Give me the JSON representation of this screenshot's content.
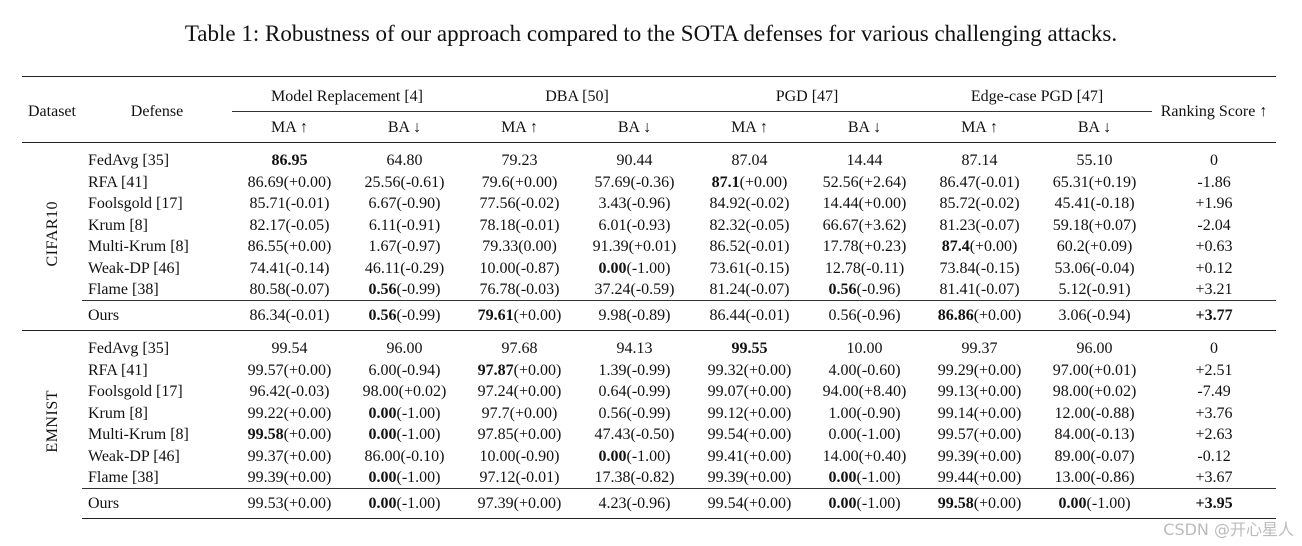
{
  "caption": "Table 1: Robustness of our approach compared to the SOTA defenses for various challenging attacks.",
  "headers": {
    "dataset": "Dataset",
    "defense": "Defense",
    "groups": [
      "Model Replacement [4]",
      "DBA [50]",
      "PGD [47]",
      "Edge-case PGD [47]"
    ],
    "ranking": "Ranking Score ↑",
    "sub": [
      "MA ↑",
      "BA ↓",
      "MA ↑",
      "BA ↓",
      "MA ↑",
      "BA ↓",
      "MA ↑",
      "BA ↓"
    ]
  },
  "sections": [
    {
      "dataset": "CIFAR10",
      "rows": [
        {
          "defense": "FedAvg [35]",
          "cells": [
            [
              "86.95",
              ""
            ],
            [
              "64.80",
              ""
            ],
            [
              "79.23",
              ""
            ],
            [
              "90.44",
              ""
            ],
            [
              "87.04",
              ""
            ],
            [
              "14.44",
              ""
            ],
            [
              "87.14",
              ""
            ],
            [
              "55.10",
              ""
            ]
          ],
          "bold": [
            0
          ],
          "rank": "0"
        },
        {
          "defense": "RFA [41]",
          "cells": [
            [
              "86.69",
              "(+0.00)"
            ],
            [
              "25.56",
              "(-0.61)"
            ],
            [
              "79.6",
              "(+0.00)"
            ],
            [
              "57.69",
              "(-0.36)"
            ],
            [
              "87.1",
              "(+0.00)"
            ],
            [
              "52.56",
              "(+2.64)"
            ],
            [
              "86.47",
              "(-0.01)"
            ],
            [
              "65.31",
              "(+0.19)"
            ]
          ],
          "bold": [
            4
          ],
          "rank": "-1.86"
        },
        {
          "defense": "Foolsgold [17]",
          "cells": [
            [
              "85.71",
              "(-0.01)"
            ],
            [
              "6.67",
              "(-0.90)"
            ],
            [
              "77.56",
              "(-0.02)"
            ],
            [
              "3.43",
              "(-0.96)"
            ],
            [
              "84.92",
              "(-0.02)"
            ],
            [
              "14.44",
              "(+0.00)"
            ],
            [
              "85.72",
              "(-0.02)"
            ],
            [
              "45.41",
              "(-0.18)"
            ]
          ],
          "bold": [],
          "rank": "+1.96"
        },
        {
          "defense": "Krum [8]",
          "cells": [
            [
              "82.17",
              "(-0.05)"
            ],
            [
              "6.11",
              "(-0.91)"
            ],
            [
              "78.18",
              "(-0.01)"
            ],
            [
              "6.01",
              "(-0.93)"
            ],
            [
              "82.32",
              "(-0.05)"
            ],
            [
              "66.67",
              "(+3.62)"
            ],
            [
              "81.23",
              "(-0.07)"
            ],
            [
              "59.18",
              "(+0.07)"
            ]
          ],
          "bold": [],
          "rank": "-2.04"
        },
        {
          "defense": "Multi-Krum [8]",
          "cells": [
            [
              "86.55",
              "(+0.00)"
            ],
            [
              "1.67",
              "(-0.97)"
            ],
            [
              "79.33",
              "(0.00)"
            ],
            [
              "91.39",
              "(+0.01)"
            ],
            [
              "86.52",
              "(-0.01)"
            ],
            [
              "17.78",
              "(+0.23)"
            ],
            [
              "87.4",
              "(+0.00)"
            ],
            [
              "60.2",
              "(+0.09)"
            ]
          ],
          "bold": [
            6
          ],
          "rank": "+0.63"
        },
        {
          "defense": "Weak-DP [46]",
          "cells": [
            [
              "74.41",
              "(-0.14)"
            ],
            [
              "46.11",
              "(-0.29)"
            ],
            [
              "10.00",
              "(-0.87)"
            ],
            [
              "0.00",
              "(-1.00)"
            ],
            [
              "73.61",
              "(-0.15)"
            ],
            [
              "12.78",
              "(-0.11)"
            ],
            [
              "73.84",
              "(-0.15)"
            ],
            [
              "53.06",
              "(-0.04)"
            ]
          ],
          "bold": [
            3
          ],
          "rank": "+0.12"
        },
        {
          "defense": "Flame [38]",
          "cells": [
            [
              "80.58",
              "(-0.07)"
            ],
            [
              "0.56",
              "(-0.99)"
            ],
            [
              "76.78",
              "(-0.03)"
            ],
            [
              "37.24",
              "(-0.59)"
            ],
            [
              "81.24",
              "(-0.07)"
            ],
            [
              "0.56",
              "(-0.96)"
            ],
            [
              "81.41",
              "(-0.07)"
            ],
            [
              "5.12",
              "(-0.91)"
            ]
          ],
          "bold": [
            1,
            5
          ],
          "rank": "+3.21"
        },
        {
          "defense": "Ours",
          "cells": [
            [
              "86.34",
              "(-0.01)"
            ],
            [
              "0.56",
              "(-0.99)"
            ],
            [
              "79.61",
              "(+0.00)"
            ],
            [
              "9.98",
              "(-0.89)"
            ],
            [
              "86.44",
              "(-0.01)"
            ],
            [
              "0.56",
              "(-0.96)"
            ],
            [
              "86.86",
              "(+0.00)"
            ],
            [
              "3.06",
              "(-0.94)"
            ]
          ],
          "bold": [
            1,
            2,
            6
          ],
          "rank": "+3.77",
          "rank_bold": true,
          "ours": true
        }
      ]
    },
    {
      "dataset": "EMNIST",
      "rows": [
        {
          "defense": "FedAvg [35]",
          "cells": [
            [
              "99.54",
              ""
            ],
            [
              "96.00",
              ""
            ],
            [
              "97.68",
              ""
            ],
            [
              "94.13",
              ""
            ],
            [
              "99.55",
              ""
            ],
            [
              "10.00",
              ""
            ],
            [
              "99.37",
              ""
            ],
            [
              "96.00",
              ""
            ]
          ],
          "bold": [
            4
          ],
          "rank": "0"
        },
        {
          "defense": "RFA [41]",
          "cells": [
            [
              "99.57",
              "(+0.00)"
            ],
            [
              "6.00",
              "(-0.94)"
            ],
            [
              "97.87",
              "(+0.00)"
            ],
            [
              "1.39",
              "(-0.99)"
            ],
            [
              "99.32",
              "(+0.00)"
            ],
            [
              "4.00",
              "(-0.60)"
            ],
            [
              "99.29",
              "(+0.00)"
            ],
            [
              "97.00",
              "(+0.01)"
            ]
          ],
          "bold": [
            2
          ],
          "rank": "+2.51"
        },
        {
          "defense": "Foolsgold [17]",
          "cells": [
            [
              "96.42",
              "(-0.03)"
            ],
            [
              "98.00",
              "(+0.02)"
            ],
            [
              "97.24",
              "(+0.00)"
            ],
            [
              "0.64",
              "(-0.99)"
            ],
            [
              "99.07",
              "(+0.00)"
            ],
            [
              "94.00",
              "(+8.40)"
            ],
            [
              "99.13",
              "(+0.00)"
            ],
            [
              "98.00",
              "(+0.02)"
            ]
          ],
          "bold": [],
          "rank": "-7.49"
        },
        {
          "defense": "Krum [8]",
          "cells": [
            [
              "99.22",
              "(+0.00)"
            ],
            [
              "0.00",
              "(-1.00)"
            ],
            [
              "97.7",
              "(+0.00)"
            ],
            [
              "0.56",
              "(-0.99)"
            ],
            [
              "99.12",
              "(+0.00)"
            ],
            [
              "1.00",
              "(-0.90)"
            ],
            [
              "99.14",
              "(+0.00)"
            ],
            [
              "12.00",
              "(-0.88)"
            ]
          ],
          "bold": [
            1
          ],
          "rank": "+3.76"
        },
        {
          "defense": "Multi-Krum [8]",
          "cells": [
            [
              "99.58",
              "(+0.00)"
            ],
            [
              "0.00",
              "(-1.00)"
            ],
            [
              "97.85",
              "(+0.00)"
            ],
            [
              "47.43",
              "(-0.50)"
            ],
            [
              "99.54",
              "(+0.00)"
            ],
            [
              "0.00",
              "(-1.00)"
            ],
            [
              "99.57",
              "(+0.00)"
            ],
            [
              "84.00",
              "(-0.13)"
            ]
          ],
          "bold": [
            0,
            1
          ],
          "rank": "+2.63"
        },
        {
          "defense": "Weak-DP [46]",
          "cells": [
            [
              "99.37",
              "(+0.00)"
            ],
            [
              "86.00",
              "(-0.10)"
            ],
            [
              "10.00",
              "(-0.90)"
            ],
            [
              "0.00",
              "(-1.00)"
            ],
            [
              "99.41",
              "(+0.00)"
            ],
            [
              "14.00",
              "(+0.40)"
            ],
            [
              "99.39",
              "(+0.00)"
            ],
            [
              "89.00",
              "(-0.07)"
            ]
          ],
          "bold": [
            3
          ],
          "rank": "-0.12"
        },
        {
          "defense": "Flame [38]",
          "cells": [
            [
              "99.39",
              "(+0.00)"
            ],
            [
              "0.00",
              "(-1.00)"
            ],
            [
              "97.12",
              "(-0.01)"
            ],
            [
              "17.38",
              "(-0.82)"
            ],
            [
              "99.39",
              "(+0.00)"
            ],
            [
              "0.00",
              "(-1.00)"
            ],
            [
              "99.44",
              "(+0.00)"
            ],
            [
              "13.00",
              "(-0.86)"
            ]
          ],
          "bold": [
            1,
            5
          ],
          "rank": "+3.67"
        },
        {
          "defense": "Ours",
          "cells": [
            [
              "99.53",
              "(+0.00)"
            ],
            [
              "0.00",
              "(-1.00)"
            ],
            [
              "97.39",
              "(+0.00)"
            ],
            [
              "4.23",
              "(-0.96)"
            ],
            [
              "99.54",
              "(+0.00)"
            ],
            [
              "0.00",
              "(-1.00)"
            ],
            [
              "99.58",
              "(+0.00)"
            ],
            [
              "0.00",
              "(-1.00)"
            ]
          ],
          "bold": [
            1,
            5,
            6,
            7
          ],
          "rank": "+3.95",
          "rank_bold": true,
          "ours": true
        }
      ]
    }
  ],
  "watermark": "CSDN @开心星人"
}
